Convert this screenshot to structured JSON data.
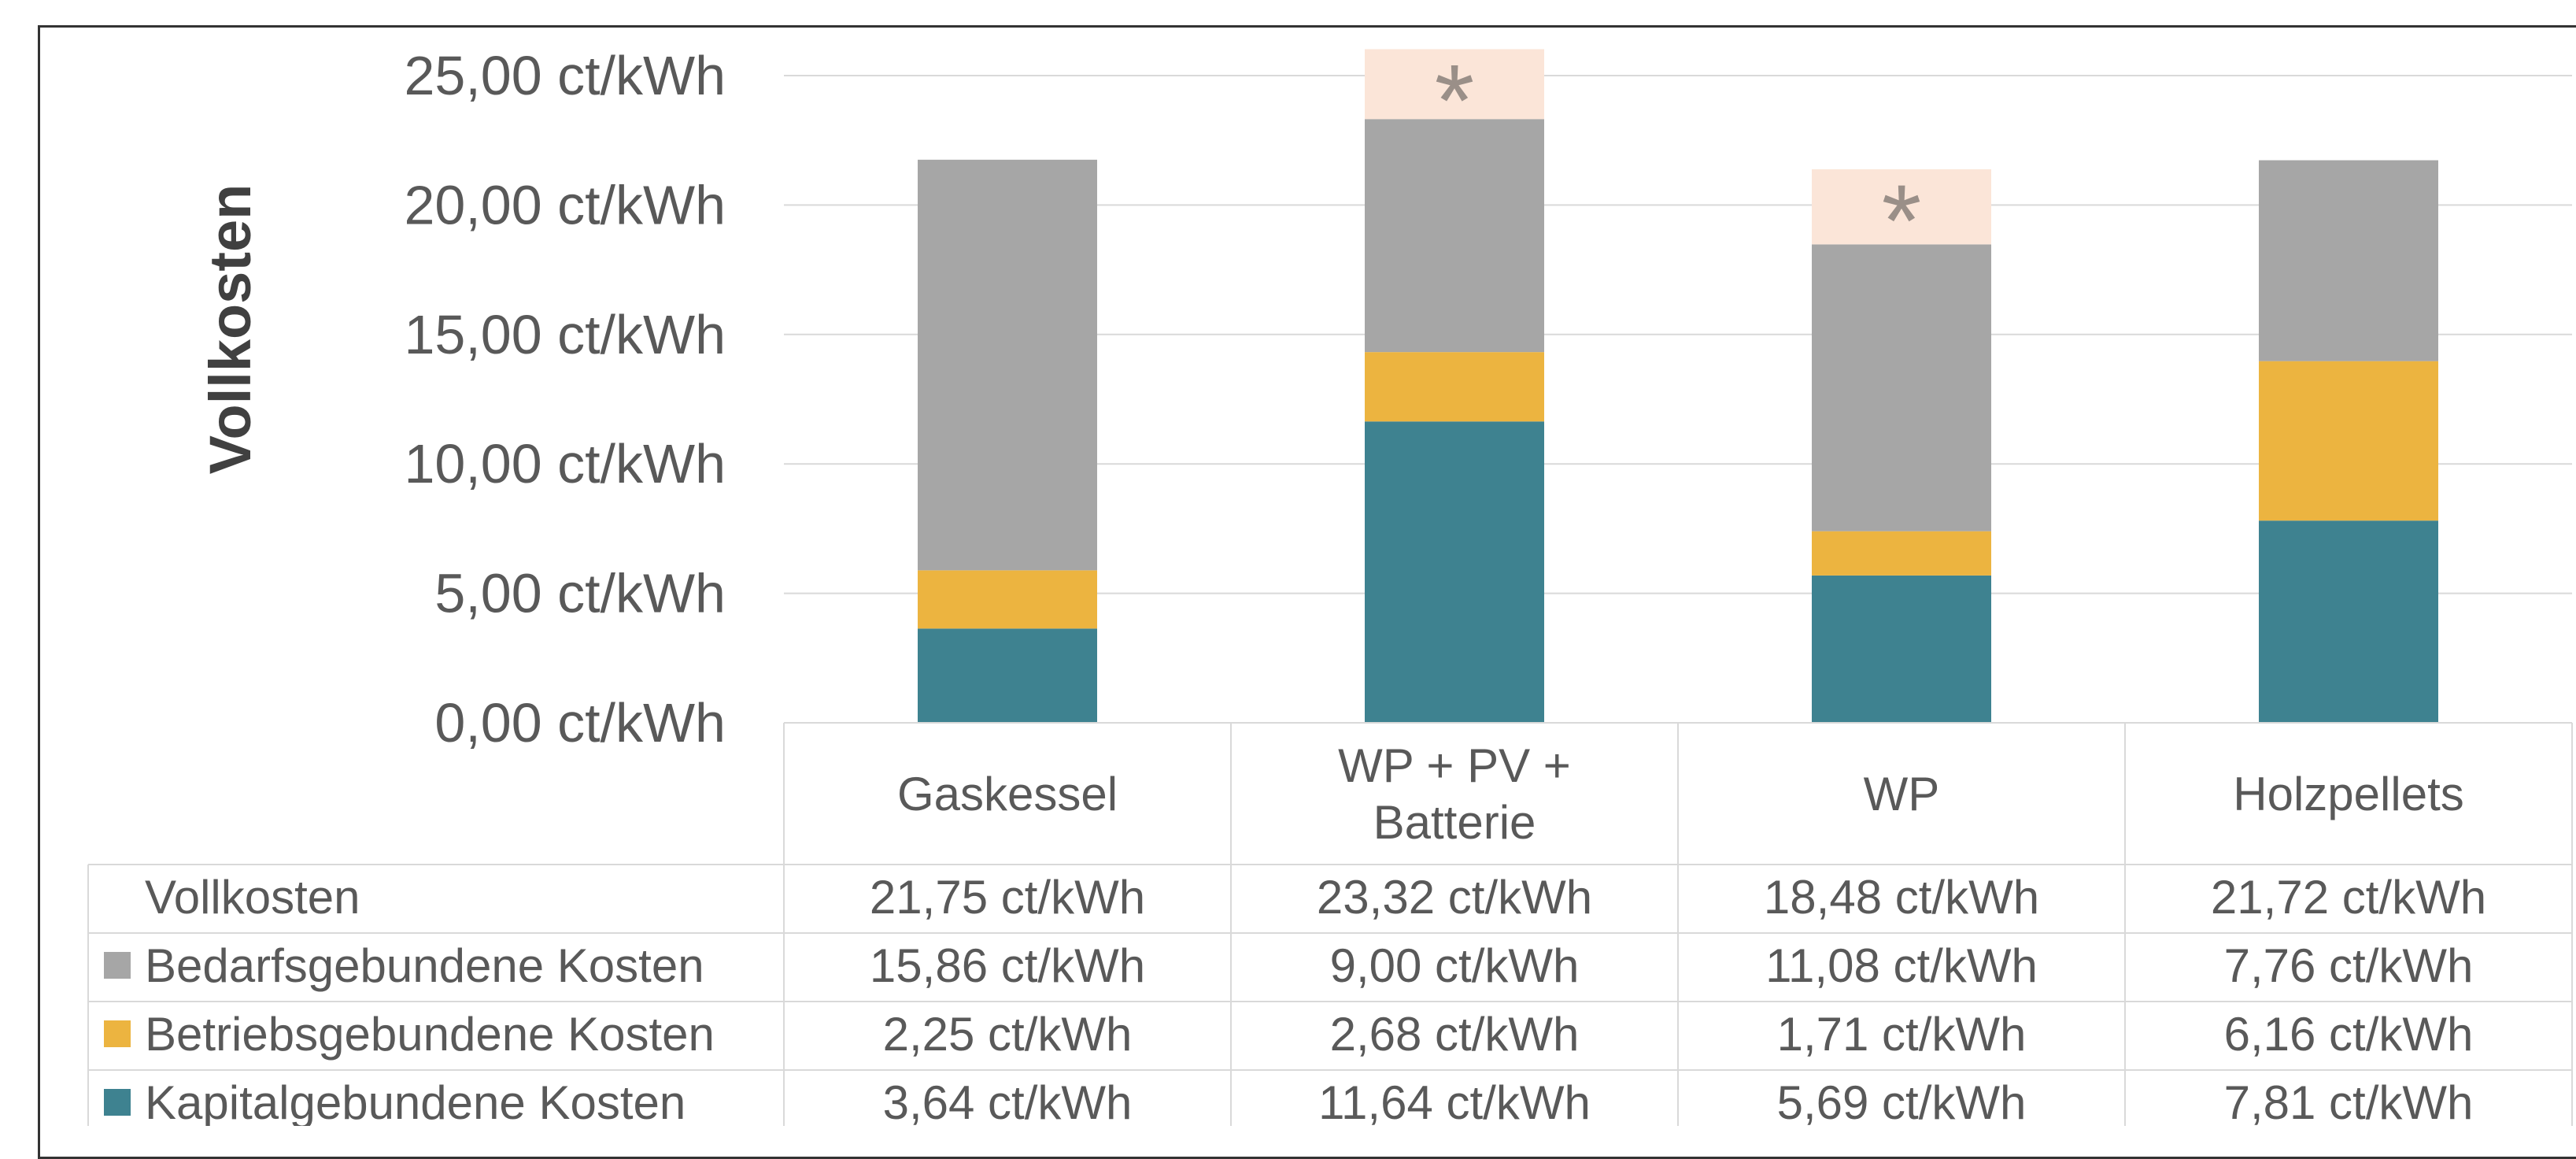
{
  "chart_data": {
    "type": "bar",
    "stacked": true,
    "ylabel": "Vollkosten",
    "ylim": [
      0,
      25
    ],
    "y_ticks": [
      "0,00 ct/kWh",
      "5,00 ct/kWh",
      "10,00 ct/kWh",
      "15,00 ct/kWh",
      "20,00 ct/kWh",
      "25,00 ct/kWh"
    ],
    "y_tick_values": [
      0,
      5,
      10,
      15,
      20,
      25
    ],
    "grid": true,
    "categories": [
      "Gaskessel",
      "WP + PV + Batterie",
      "WP",
      "Holzpellets"
    ],
    "category_lines": [
      [
        "Gaskessel"
      ],
      [
        "WP + PV +",
        "Batterie"
      ],
      [
        "WP"
      ],
      [
        "Holzpellets"
      ]
    ],
    "series": [
      {
        "name": "Kapitalgebundene Kosten",
        "color": "#3e8290",
        "values": [
          3.64,
          11.64,
          5.69,
          7.81
        ],
        "labels": [
          "3,64 ct/kWh",
          "11,64 ct/kWh",
          "5,69 ct/kWh",
          "7,81 ct/kWh"
        ]
      },
      {
        "name": "Betriebsgebundene Kosten",
        "color": "#ecb440",
        "values": [
          2.25,
          2.68,
          1.71,
          6.16
        ],
        "labels": [
          "2,25 ct/kWh",
          "2,68 ct/kWh",
          "1,71 ct/kWh",
          "6,16 ct/kWh"
        ]
      },
      {
        "name": "Bedarfsgebundene Kosten",
        "color": "#a6a6a6",
        "values": [
          15.86,
          9.0,
          11.08,
          7.76
        ],
        "labels": [
          "15,86 ct/kWh",
          "9,00 ct/kWh",
          "11,08 ct/kWh",
          "7,76 ct/kWh"
        ]
      }
    ],
    "extra_segment": {
      "color": "#fbe5d8",
      "values": [
        0,
        2.7,
        2.9,
        0
      ],
      "marker": "*"
    },
    "table": {
      "total_row_label": "Vollkosten",
      "totals": [
        "21,75 ct/kWh",
        "23,32 ct/kWh",
        "18,48 ct/kWh",
        "21,72 ct/kWh"
      ],
      "row_order": [
        "Bedarfsgebundene Kosten",
        "Betriebsgebundene Kosten",
        "Kapitalgebundene Kosten"
      ]
    }
  }
}
